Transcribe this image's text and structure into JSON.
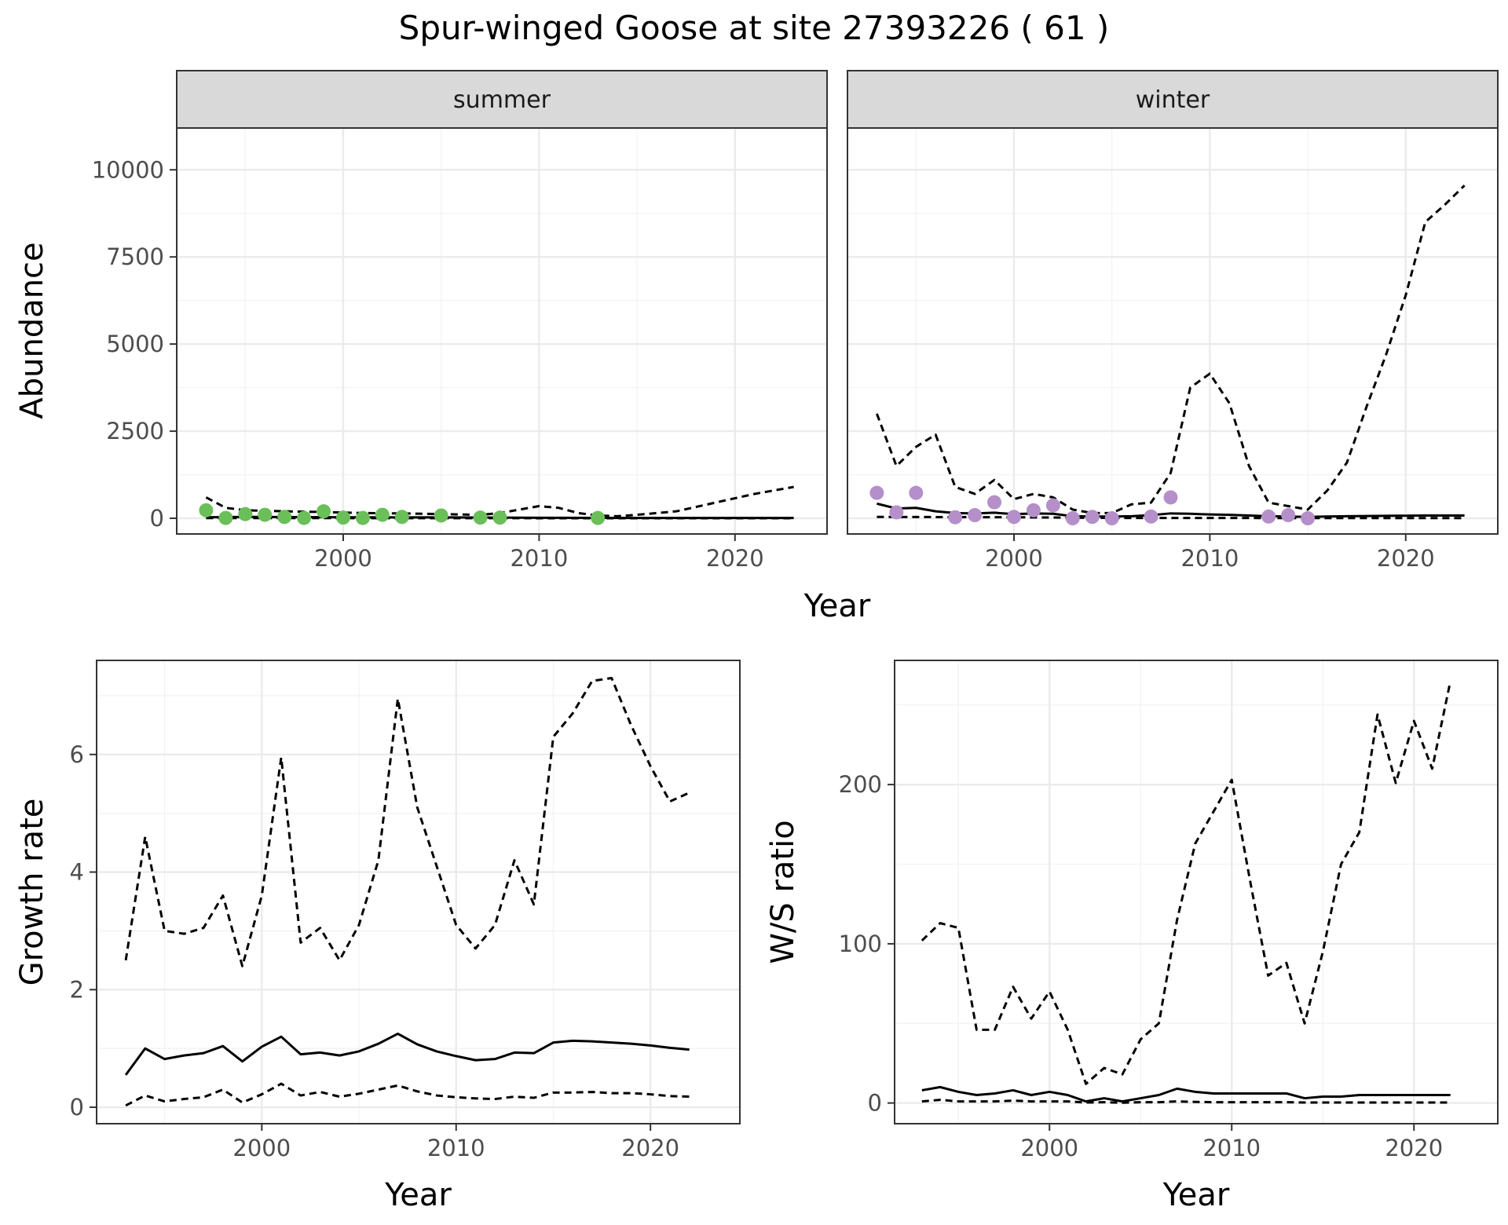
{
  "title": "Spur-winged Goose at site 27393226 ( 61 )",
  "colors": {
    "summer_points": "#6bbf59",
    "winter_points": "#b58fc9",
    "lines": "#000000"
  },
  "chart_data": [
    {
      "type": "line",
      "panel": "abundance",
      "facets": [
        "summer",
        "winter"
      ],
      "xlabel": "Year",
      "ylabel": "Abundance",
      "xlim": [
        1991.5,
        2024.7
      ],
      "ylim": [
        -450,
        11200
      ],
      "xticks": [
        2000,
        2010,
        2020
      ],
      "yticks": [
        0,
        2500,
        5000,
        7500,
        10000
      ],
      "grid": true,
      "legend": "none",
      "summer": {
        "points": {
          "x": [
            1993,
            1994,
            1995,
            1996,
            1997,
            1998,
            1999,
            2000,
            2001,
            2002,
            2003,
            2005,
            2007,
            2008,
            2013
          ],
          "y": [
            230,
            10,
            120,
            100,
            40,
            10,
            200,
            20,
            10,
            100,
            40,
            80,
            20,
            20,
            10
          ]
        },
        "median": {
          "x": [
            1993,
            1995,
            2000,
            2005,
            2010,
            2015,
            2020,
            2023
          ],
          "y": [
            30,
            40,
            30,
            25,
            15,
            10,
            10,
            10
          ]
        },
        "upper": {
          "x": [
            1993,
            1994,
            1995,
            1997,
            1999,
            2001,
            2003,
            2005,
            2007,
            2008,
            2009,
            2010,
            2011,
            2012,
            2013,
            2014,
            2015,
            2017,
            2019,
            2021,
            2023
          ],
          "y": [
            600,
            300,
            230,
            200,
            180,
            150,
            140,
            120,
            100,
            150,
            250,
            350,
            300,
            150,
            80,
            60,
            100,
            200,
            450,
            700,
            900
          ]
        },
        "lower": {
          "x": [
            1993,
            2000,
            2010,
            2023
          ],
          "y": [
            5,
            5,
            2,
            1
          ]
        }
      },
      "winter": {
        "points": {
          "x": [
            1993,
            1994,
            1995,
            1997,
            1998,
            1999,
            2000,
            2001,
            2002,
            2003,
            2004,
            2005,
            2007,
            2008,
            2013,
            2014,
            2015
          ],
          "y": [
            730,
            170,
            730,
            30,
            90,
            460,
            40,
            230,
            370,
            0,
            40,
            0,
            50,
            600,
            50,
            90,
            0
          ]
        },
        "median": {
          "x": [
            1993,
            1994,
            1995,
            1996,
            1997,
            1998,
            1999,
            2000,
            2001,
            2002,
            2003,
            2004,
            2005,
            2006,
            2007,
            2008,
            2009,
            2010,
            2011,
            2012,
            2013,
            2014,
            2015,
            2016,
            2017,
            2018,
            2019,
            2020,
            2021,
            2022,
            2023
          ],
          "y": [
            420,
            280,
            300,
            200,
            150,
            140,
            160,
            120,
            140,
            130,
            60,
            50,
            50,
            60,
            90,
            140,
            130,
            110,
            100,
            80,
            60,
            50,
            40,
            50,
            60,
            65,
            70,
            75,
            80,
            80,
            80
          ]
        },
        "upper": {
          "x": [
            1993,
            1994,
            1995,
            1996,
            1997,
            1998,
            1999,
            2000,
            2001,
            2002,
            2003,
            2004,
            2005,
            2006,
            2007,
            2008,
            2009,
            2010,
            2011,
            2012,
            2013,
            2014,
            2015,
            2016,
            2017,
            2018,
            2019,
            2020,
            2021,
            2022,
            2023
          ],
          "y": [
            3000,
            1500,
            2050,
            2400,
            900,
            700,
            1100,
            550,
            700,
            600,
            250,
            150,
            150,
            400,
            450,
            1300,
            3750,
            4150,
            3300,
            1500,
            450,
            350,
            250,
            800,
            1600,
            3200,
            4700,
            6400,
            8500,
            9000,
            9550
          ]
        },
        "lower": {
          "x": [
            1993,
            2000,
            2005,
            2010,
            2015,
            2023
          ],
          "y": [
            40,
            30,
            10,
            10,
            5,
            5
          ]
        }
      }
    },
    {
      "type": "line",
      "panel": "growth",
      "xlabel": "Year",
      "ylabel": "Growth rate",
      "xlim": [
        1991.5,
        2024.6
      ],
      "ylim": [
        -0.28,
        7.6
      ],
      "xticks": [
        2000,
        2010,
        2020
      ],
      "yticks": [
        0,
        2,
        4,
        6
      ],
      "grid": true,
      "median": {
        "x": [
          1993,
          1994,
          1995,
          1996,
          1997,
          1998,
          1999,
          2000,
          2001,
          2002,
          2003,
          2004,
          2005,
          2006,
          2007,
          2008,
          2009,
          2010,
          2011,
          2012,
          2013,
          2014,
          2015,
          2016,
          2017,
          2018,
          2019,
          2020,
          2021,
          2022
        ],
        "y": [
          0.55,
          1.0,
          0.82,
          0.88,
          0.92,
          1.04,
          0.78,
          1.03,
          1.2,
          0.9,
          0.93,
          0.88,
          0.95,
          1.08,
          1.25,
          1.07,
          0.95,
          0.87,
          0.8,
          0.82,
          0.93,
          0.92,
          1.1,
          1.13,
          1.12,
          1.1,
          1.08,
          1.05,
          1.01,
          0.98
        ]
      },
      "upper": {
        "x": [
          1993,
          1994,
          1995,
          1996,
          1997,
          1998,
          1999,
          2000,
          2001,
          2002,
          2003,
          2004,
          2005,
          2006,
          2007,
          2008,
          2009,
          2010,
          2011,
          2012,
          2013,
          2014,
          2015,
          2016,
          2017,
          2018,
          2019,
          2020,
          2021,
          2022
        ],
        "y": [
          2.5,
          4.6,
          3.0,
          2.95,
          3.05,
          3.6,
          2.4,
          3.6,
          5.95,
          2.8,
          3.05,
          2.5,
          3.1,
          4.2,
          6.95,
          5.1,
          4.1,
          3.1,
          2.7,
          3.1,
          4.2,
          3.45,
          6.3,
          6.7,
          7.25,
          7.3,
          6.5,
          5.8,
          5.2,
          5.35
        ]
      },
      "lower": {
        "x": [
          1993,
          1994,
          1995,
          1996,
          1997,
          1998,
          1999,
          2000,
          2001,
          2002,
          2003,
          2004,
          2005,
          2006,
          2007,
          2008,
          2009,
          2010,
          2011,
          2012,
          2013,
          2014,
          2015,
          2016,
          2017,
          2018,
          2019,
          2020,
          2021,
          2022
        ],
        "y": [
          0.03,
          0.2,
          0.1,
          0.14,
          0.17,
          0.3,
          0.08,
          0.22,
          0.4,
          0.2,
          0.26,
          0.18,
          0.23,
          0.3,
          0.37,
          0.27,
          0.2,
          0.17,
          0.15,
          0.14,
          0.18,
          0.16,
          0.25,
          0.25,
          0.26,
          0.24,
          0.24,
          0.22,
          0.19,
          0.18
        ]
      }
    },
    {
      "type": "line",
      "panel": "ratio",
      "xlabel": "Year",
      "ylabel": "W/S ratio",
      "xlim": [
        1991.5,
        2024.6
      ],
      "ylim": [
        -13,
        278
      ],
      "xticks": [
        2000,
        2010,
        2020
      ],
      "yticks": [
        0,
        100,
        200
      ],
      "grid": true,
      "median": {
        "x": [
          1993,
          1994,
          1995,
          1996,
          1997,
          1998,
          1999,
          2000,
          2001,
          2002,
          2003,
          2004,
          2005,
          2006,
          2007,
          2008,
          2009,
          2010,
          2011,
          2012,
          2013,
          2014,
          2015,
          2016,
          2017,
          2018,
          2019,
          2020,
          2021,
          2022
        ],
        "y": [
          8,
          10,
          7,
          5,
          6,
          8,
          5,
          7,
          5,
          1,
          3,
          1,
          3,
          5,
          9,
          7,
          6,
          6,
          6,
          6,
          6,
          3,
          4,
          4,
          5,
          5,
          5,
          5,
          5,
          5
        ]
      },
      "upper": {
        "x": [
          1993,
          1994,
          1995,
          1996,
          1997,
          1998,
          1999,
          2000,
          2001,
          2002,
          2003,
          2004,
          2005,
          2006,
          2007,
          2008,
          2009,
          2010,
          2011,
          2012,
          2013,
          2014,
          2015,
          2016,
          2017,
          2018,
          2019,
          2020,
          2021,
          2022
        ],
        "y": [
          102,
          113,
          110,
          46,
          46,
          73,
          53,
          70,
          46,
          12,
          22,
          18,
          40,
          50,
          115,
          163,
          183,
          203,
          140,
          80,
          88,
          50,
          95,
          150,
          170,
          244,
          201,
          240,
          210,
          265
        ]
      },
      "lower": {
        "x": [
          1993,
          1994,
          1995,
          1996,
          1997,
          1998,
          1999,
          2000,
          2001,
          2002,
          2003,
          2004,
          2005,
          2006,
          2007,
          2008,
          2009,
          2010,
          2011,
          2012,
          2013,
          2014,
          2015,
          2016,
          2017,
          2018,
          2019,
          2020,
          2021,
          2022
        ],
        "y": [
          1,
          2,
          1,
          1,
          1,
          1.5,
          1,
          1,
          1,
          0.3,
          0.5,
          0.2,
          0.5,
          0.5,
          1,
          0.7,
          0.5,
          0.5,
          0.5,
          0.5,
          0.5,
          0.3,
          0.3,
          0.3,
          0.3,
          0.3,
          0.3,
          0.3,
          0.3,
          0.3
        ]
      }
    }
  ]
}
